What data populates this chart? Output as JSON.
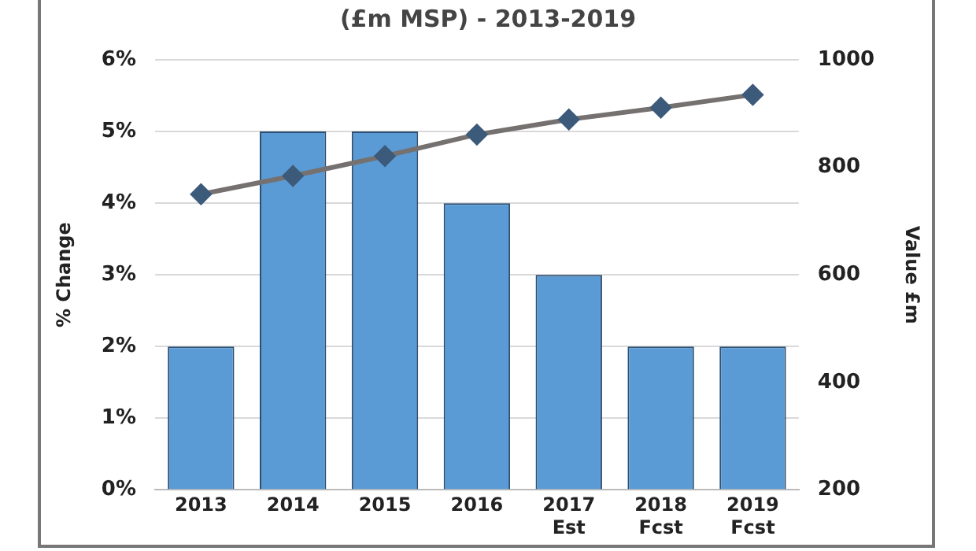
{
  "chart_data": {
    "type": "bar",
    "title": "(£m MSP) - 2013-2019",
    "ylabel": "% Change",
    "y2label": "Value £m",
    "categories": [
      "2013",
      "2014",
      "2015",
      "2016",
      "2017\nEst",
      "2018\nFcst",
      "2019\nFcst"
    ],
    "series": [
      {
        "color": "#5b9bd5",
        "values": [
          2,
          5,
          5,
          4,
          3,
          2,
          2
        ]
      },
      {
        "type": "line",
        "axis": "y2",
        "color": "#767171",
        "values": [
          750,
          784,
          821,
          861,
          889,
          911,
          935
        ]
      }
    ],
    "ylim": [
      0,
      6
    ],
    "yticks": [
      {
        "value": 0,
        "label": "0%"
      },
      {
        "value": 1,
        "label": "1%"
      },
      {
        "value": 2,
        "label": "2%"
      },
      {
        "value": 3,
        "label": "3%"
      },
      {
        "value": 4,
        "label": "4%"
      },
      {
        "value": 5,
        "label": "5%"
      },
      {
        "value": 6,
        "label": "6%"
      }
    ],
    "y2lim": [
      200,
      1000
    ],
    "y2ticks": [
      200,
      400,
      600,
      800,
      1000
    ],
    "grid": "y",
    "legend": false,
    "marker": "diamond",
    "line_style": "solid"
  }
}
